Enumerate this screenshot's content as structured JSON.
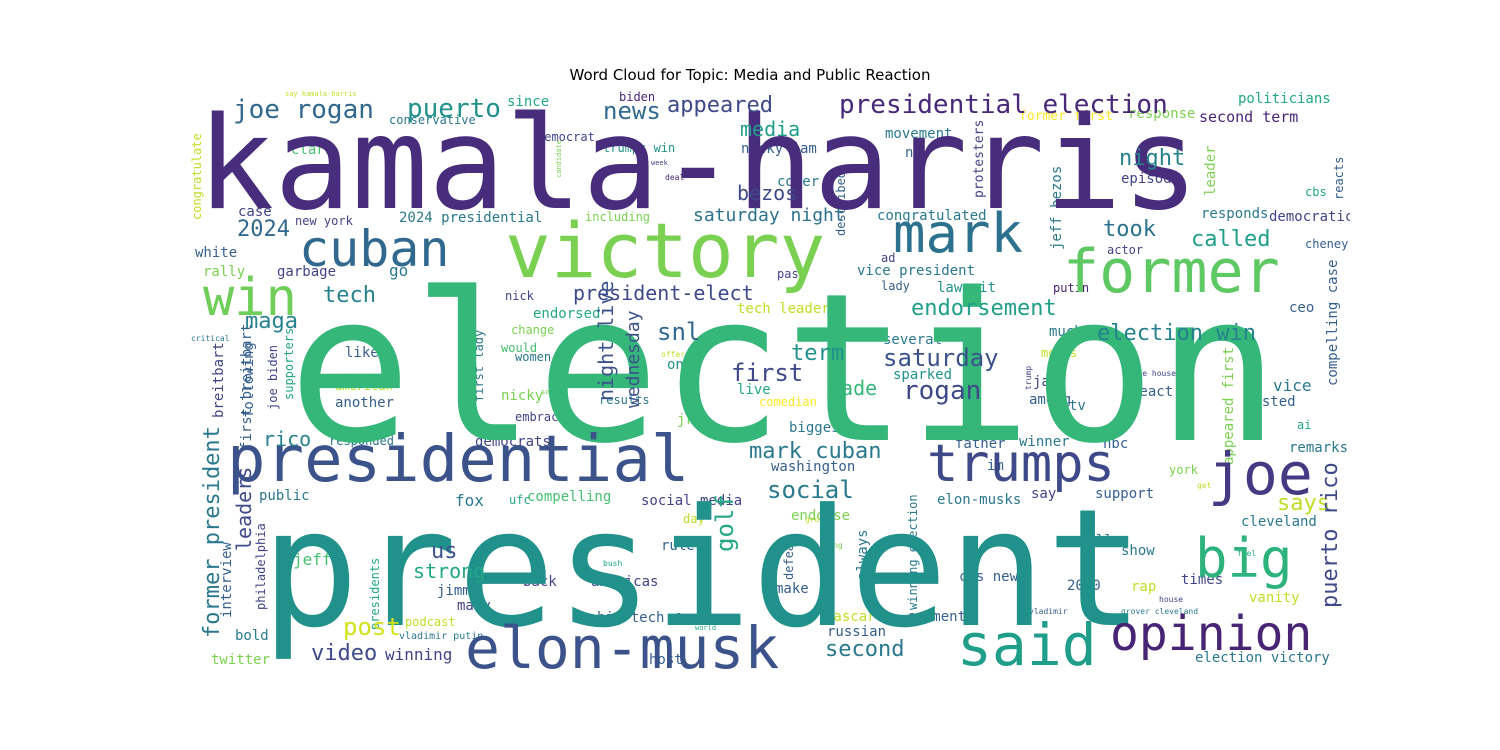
{
  "chart_data": {
    "type": "wordcloud",
    "title": "Word Cloud for Topic: Media and Public Reaction",
    "words": [
      {
        "text": "kamala-harris",
        "color": "#472d7b"
      },
      {
        "text": "election",
        "color": "#35b779"
      },
      {
        "text": "president",
        "color": "#21918c"
      },
      {
        "text": "presidential",
        "color": "#3b528b"
      },
      {
        "text": "victory",
        "color": "#7ad151"
      },
      {
        "text": "cuban",
        "color": "#31688e"
      },
      {
        "text": "mark",
        "color": "#2c728e"
      },
      {
        "text": "former",
        "color": "#5ec962"
      },
      {
        "text": "win",
        "color": "#6ece58"
      },
      {
        "text": "trumps",
        "color": "#3e4989"
      },
      {
        "text": "joe",
        "color": "#443983"
      },
      {
        "text": "elon-musk",
        "color": "#3b528b"
      },
      {
        "text": "big",
        "color": "#2db27d"
      },
      {
        "text": "said",
        "color": "#1f9e89"
      },
      {
        "text": "opinion",
        "color": "#482475"
      },
      {
        "text": "joe rogan",
        "color": "#31688e"
      },
      {
        "text": "puerto",
        "color": "#21918c"
      },
      {
        "text": "news",
        "color": "#31688e"
      },
      {
        "text": "appeared",
        "color": "#3e4989"
      },
      {
        "text": "presidential election",
        "color": "#482878"
      },
      {
        "text": "media",
        "color": "#1f9e89"
      },
      {
        "text": "night",
        "color": "#26828e"
      },
      {
        "text": "called",
        "color": "#1f9e89"
      },
      {
        "text": "took",
        "color": "#2c728e"
      },
      {
        "text": "2024",
        "color": "#31688e"
      },
      {
        "text": "tech",
        "color": "#26828e"
      },
      {
        "text": "president-elect",
        "color": "#3e4989"
      },
      {
        "text": "snl",
        "color": "#31688e"
      },
      {
        "text": "endorsement",
        "color": "#1f9e89"
      },
      {
        "text": "election win",
        "color": "#26828e"
      },
      {
        "text": "maga",
        "color": "#26828e"
      },
      {
        "text": "saturday",
        "color": "#3b528b"
      },
      {
        "text": "rogan",
        "color": "#3e4989"
      },
      {
        "text": "term",
        "color": "#21918c"
      },
      {
        "text": "first",
        "color": "#3e4989"
      },
      {
        "text": "made",
        "color": "#35b779"
      },
      {
        "text": "night live",
        "color": "#3b528b"
      },
      {
        "text": "wednesday",
        "color": "#3b528b"
      },
      {
        "text": "rico",
        "color": "#26828e"
      },
      {
        "text": "mark cuban",
        "color": "#2a788e"
      },
      {
        "text": "social",
        "color": "#2a788e"
      },
      {
        "text": "says",
        "color": "#bddf26"
      },
      {
        "text": "golf",
        "color": "#22a884"
      },
      {
        "text": "leaders",
        "color": "#3e4989"
      },
      {
        "text": "former president",
        "color": "#2a788e"
      },
      {
        "text": "us",
        "color": "#3b528b"
      },
      {
        "text": "strong",
        "color": "#22a884"
      },
      {
        "text": "post",
        "color": "#d2e21b"
      },
      {
        "text": "video",
        "color": "#3e4989"
      },
      {
        "text": "second",
        "color": "#2a788e"
      },
      {
        "text": "bezos",
        "color": "#3e4989"
      },
      {
        "text": "saturday night",
        "color": "#2c728e"
      },
      {
        "text": "puerto rico",
        "color": "#3e4989"
      }
    ],
    "small_words": [
      "say kamala-harris",
      "conservative",
      "democrat",
      "biden",
      "since",
      "movement",
      "response",
      "politicians",
      "second term",
      "former first",
      "clark",
      "trumps win",
      "nicky jam",
      "new",
      "protesters",
      "leader",
      "reacts",
      "cbs",
      "cover",
      "episode",
      "described",
      "congratulate",
      "case",
      "new york",
      "2024 presidential",
      "including",
      "congratulated",
      "jeff bezos",
      "responds",
      "democratic",
      "white",
      "go",
      "cheney",
      "actor",
      "rally",
      "garbage",
      "vice president",
      "past",
      "putin",
      "ad",
      "lawsuit",
      "lady",
      "nick",
      "tech leaders",
      "ceo",
      "endorsed",
      "compelling case",
      "change",
      "would",
      "much",
      "first lady",
      "women",
      "like",
      "several",
      "sparked",
      "mocks",
      "appeared first",
      "following",
      "breitbart",
      "joe biden",
      "supporters",
      "american",
      "another",
      "nicky",
      "jam",
      "among",
      "vice",
      "posted",
      "live",
      "comedian",
      "results",
      "one",
      "react",
      "jr",
      "embrace",
      "biggest",
      "responded",
      "democrats",
      "father",
      "winner",
      "nbc",
      "remarks",
      "washington",
      "im",
      "york",
      "first breitbart",
      "public",
      "fox",
      "compelling",
      "ufc",
      "social media",
      "say",
      "support",
      "cleveland",
      "elon-musks",
      "day",
      "endorse",
      "philadelphia",
      "interview",
      "jeff",
      "rule",
      "defeat",
      "always",
      "winning election",
      "presidents",
      "call",
      "show",
      "back",
      "americas",
      "make",
      "cbs news",
      "times",
      "jimmy",
      "mary",
      "2020",
      "rap",
      "podcast",
      "big tech",
      "fox news",
      "nascar",
      "comments",
      "vanity",
      "bold",
      "vladimir putin",
      "russian",
      "twitter",
      "winning",
      "host",
      "election victory",
      "ai",
      "tv",
      "critical",
      "offers",
      "white house",
      "trump",
      "south",
      "week",
      "deal",
      "bush",
      "morning",
      "feel",
      "get",
      "grover",
      "house",
      "vladimir",
      "grover cleveland",
      "candidate",
      "world"
    ]
  }
}
